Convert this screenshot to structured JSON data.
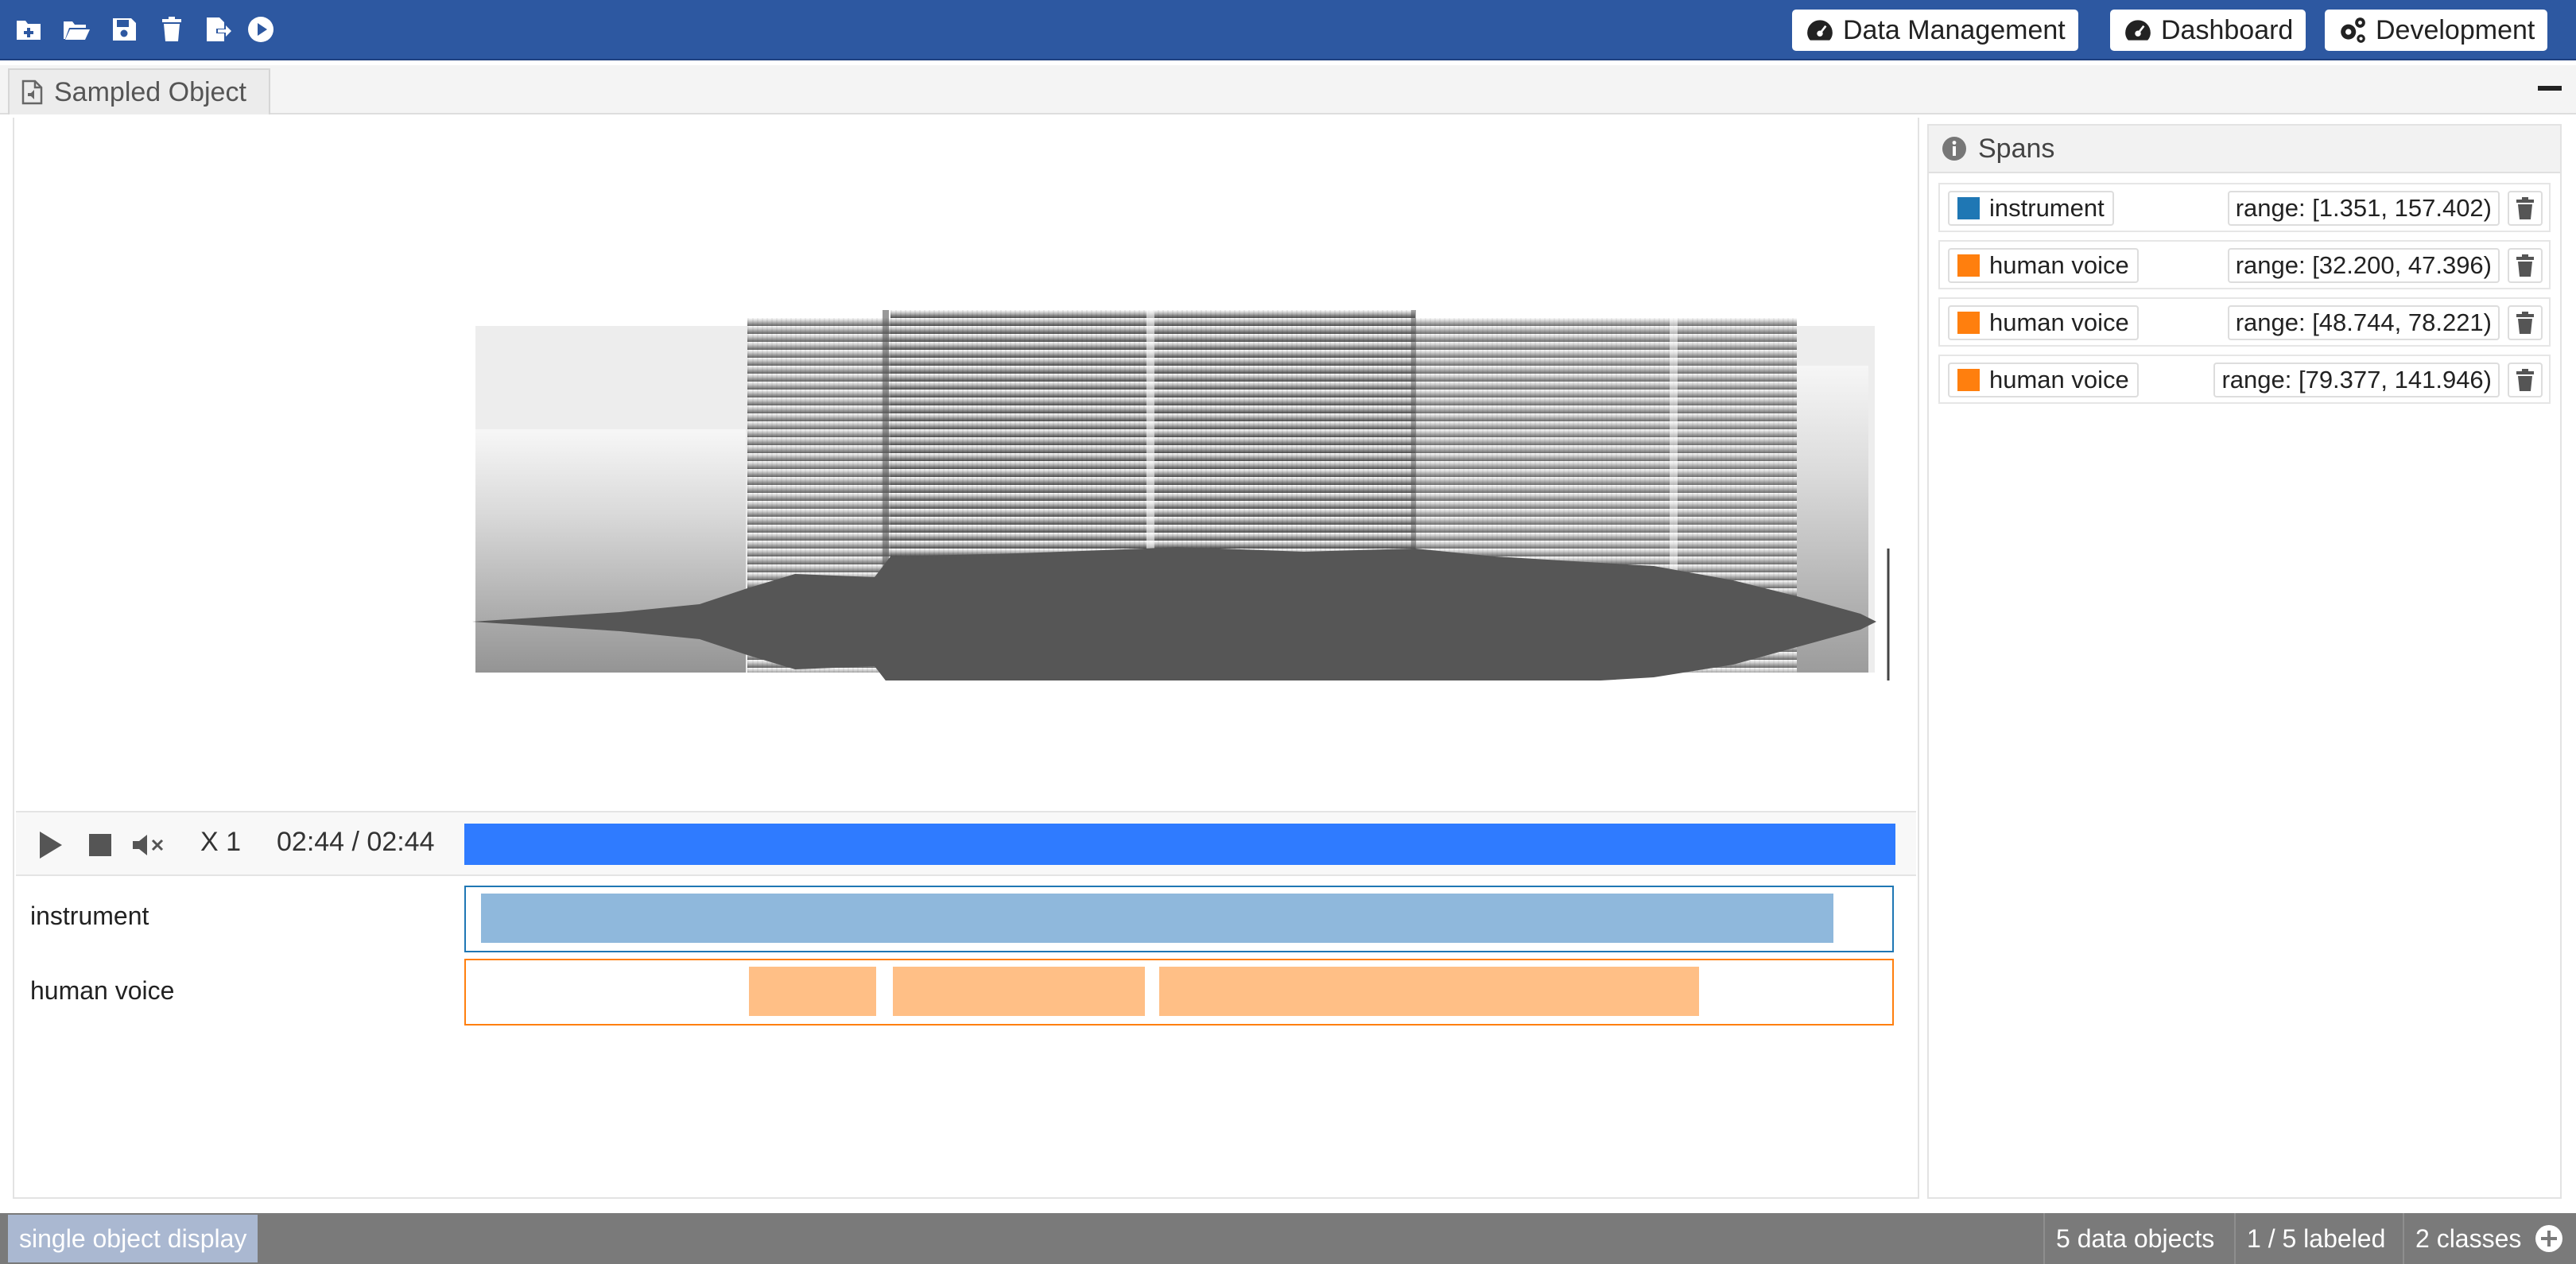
{
  "toolbar": {
    "icons": [
      "new-file-icon",
      "open-folder-icon",
      "save-icon",
      "delete-icon",
      "export-icon",
      "play-circle-icon"
    ]
  },
  "nav": {
    "data_management": "Data Management",
    "dashboard": "Dashboard",
    "development": "Development"
  },
  "tab": {
    "title": "Sampled Object"
  },
  "player": {
    "speed": "X 1",
    "time": "02:44 / 02:44",
    "progress": 1.0
  },
  "tracks": [
    {
      "label": "instrument",
      "color": "#1f77b4",
      "fill": "#8fb8dc"
    },
    {
      "label": "human voice",
      "color": "#ff7f0e",
      "fill": "#ffbf86"
    }
  ],
  "spans_panel": {
    "title": "Spans",
    "spans": [
      {
        "class": "instrument",
        "color": "#1f77b4",
        "range": "range: [1.351, 157.402)"
      },
      {
        "class": "human voice",
        "color": "#ff7f0e",
        "range": "range: [32.200, 47.396)"
      },
      {
        "class": "human voice",
        "color": "#ff7f0e",
        "range": "range: [48.744, 78.221)"
      },
      {
        "class": "human voice",
        "color": "#ff7f0e",
        "range": "range: [79.377, 141.946)"
      }
    ]
  },
  "status": {
    "mode": "single object display",
    "objects": "5 data objects",
    "labeled": "1 / 5 labeled",
    "classes": "2 classes"
  }
}
